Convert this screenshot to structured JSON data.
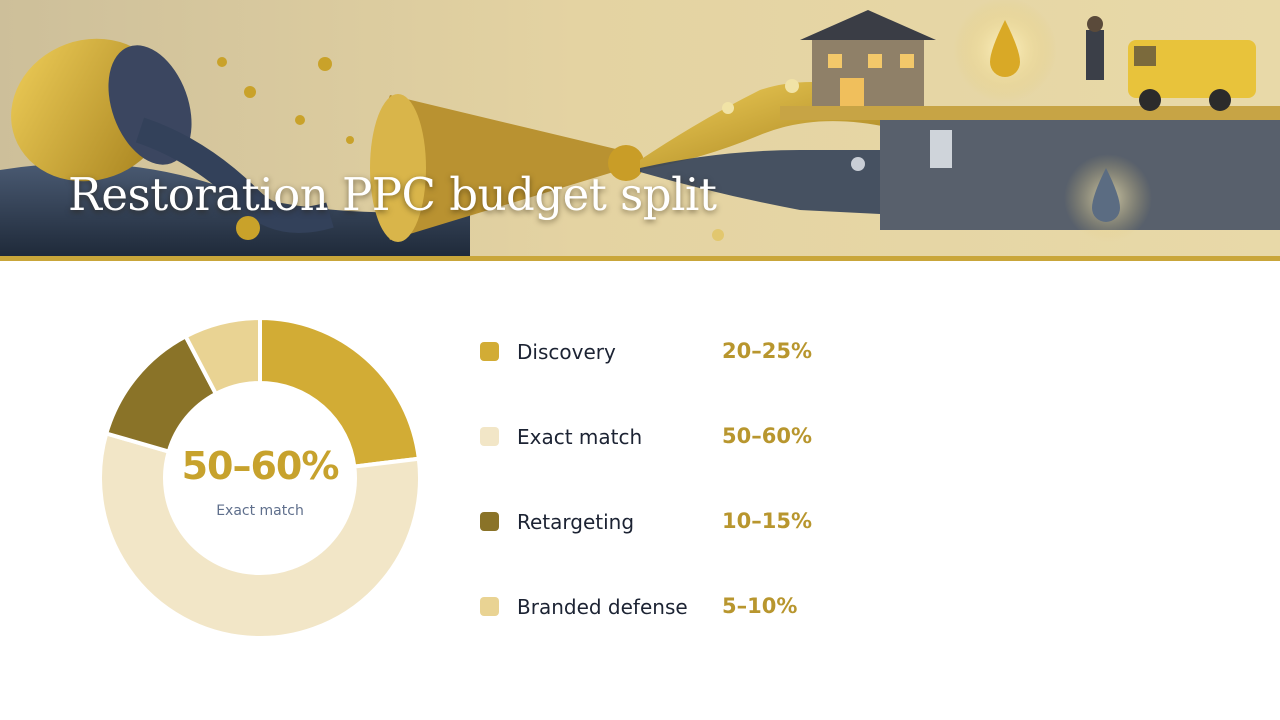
{
  "header": {
    "title": "Restoration PPC budget split"
  },
  "center": {
    "value": "50–60%",
    "label": "Exact match"
  },
  "chart_data": {
    "type": "pie",
    "title": "Restoration PPC budget split",
    "categories": [
      "Discovery",
      "Exact match",
      "Retargeting",
      "Branded defense"
    ],
    "values": [
      22.5,
      55,
      12.5,
      7.5
    ],
    "ranges": [
      "20–25%",
      "50–60%",
      "10–15%",
      "5–10%"
    ],
    "colors": [
      "#d2ac35",
      "#f2e6c7",
      "#8a7328",
      "#e9d393"
    ],
    "legend": "right"
  }
}
